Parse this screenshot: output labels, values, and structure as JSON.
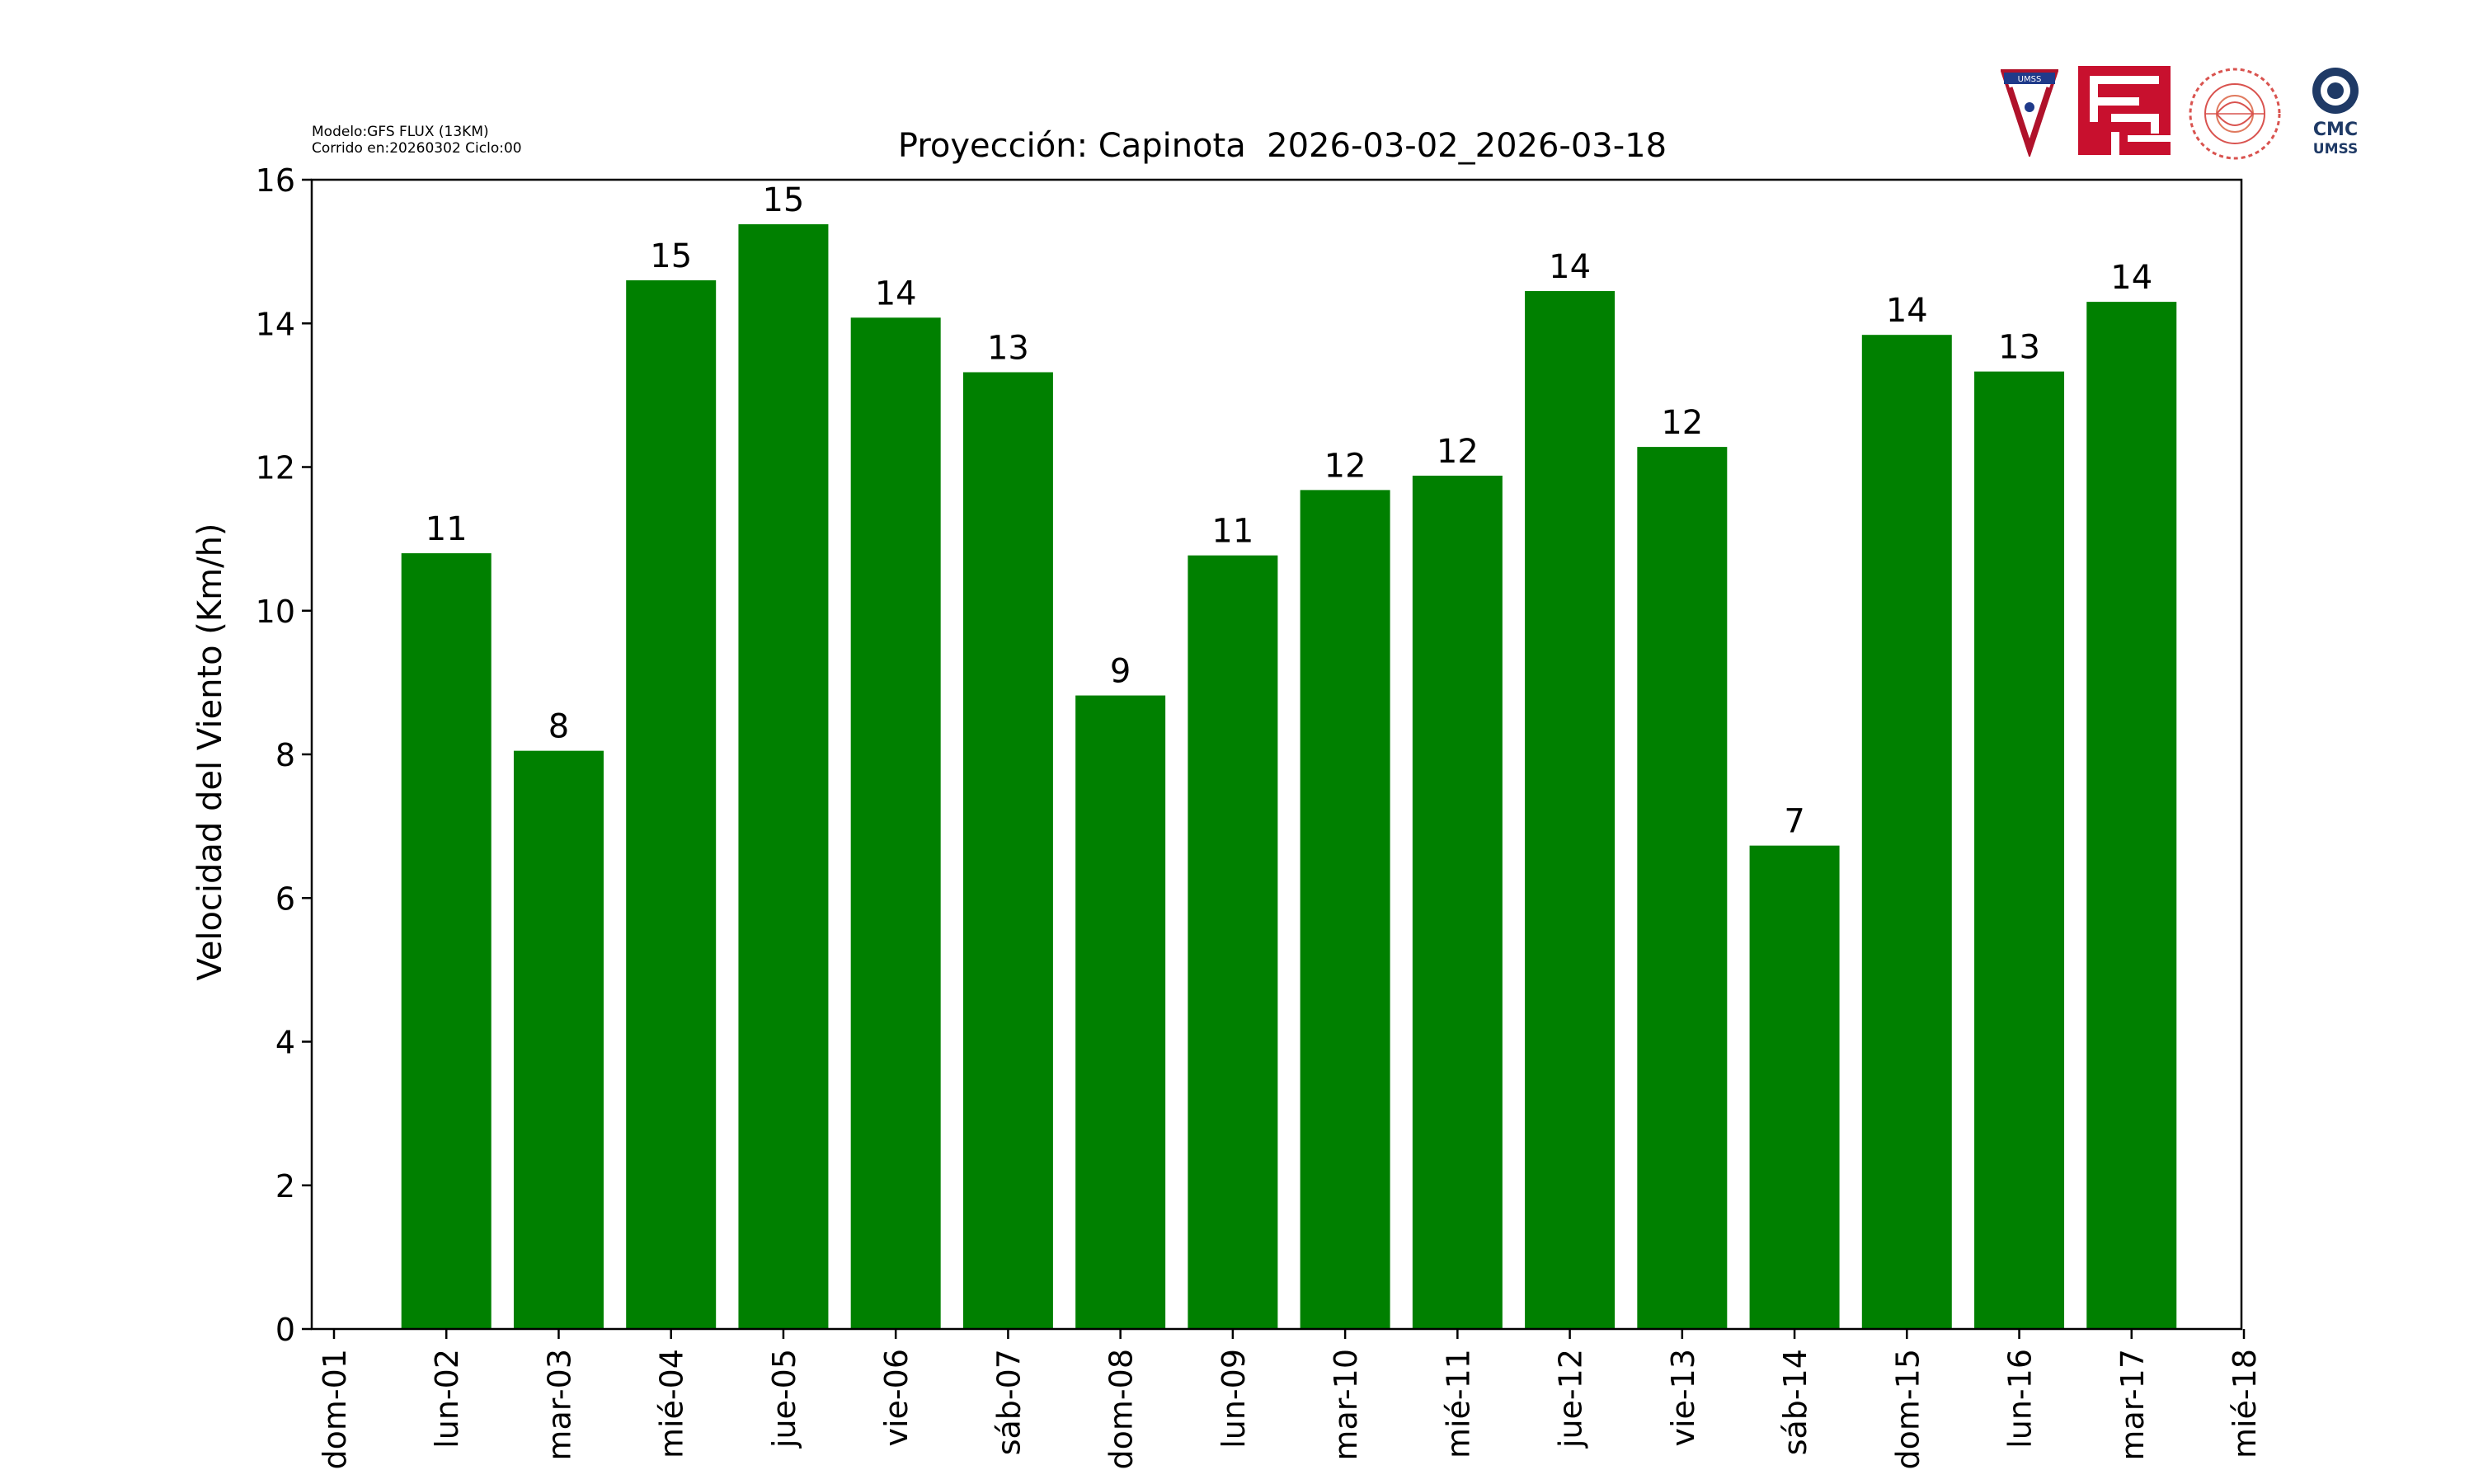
{
  "chart_data": {
    "type": "bar",
    "title": "Proyección: Capinota  2026-03-02_2026-03-18",
    "xlabel": "",
    "ylabel": "Velocidad del Viento (Km/h)",
    "ylim": [
      0,
      16
    ],
    "yticks": [
      "0",
      "2",
      "4",
      "6",
      "8",
      "10",
      "12",
      "14",
      "16"
    ],
    "xticks": [
      "dom-01",
      "lun-02",
      "mar-03",
      "mié-04",
      "jue-05",
      "vie-06",
      "sáb-07",
      "dom-08",
      "lun-09",
      "mar-10",
      "mié-11",
      "jue-12",
      "vie-13",
      "sáb-14",
      "dom-15",
      "lun-16",
      "mar-17",
      "mié-18"
    ],
    "categories": [
      "lun-02",
      "mar-03",
      "mié-04",
      "jue-05",
      "vie-06",
      "sáb-07",
      "dom-08",
      "lun-09",
      "mar-10",
      "mié-11",
      "jue-12",
      "vie-13",
      "sáb-14",
      "dom-15",
      "lun-16",
      "mar-17"
    ],
    "values": [
      10.8,
      8.05,
      14.6,
      15.38,
      14.08,
      13.32,
      8.82,
      10.77,
      11.68,
      11.88,
      14.45,
      12.28,
      6.73,
      13.84,
      13.33,
      14.3
    ],
    "data_labels": [
      "11",
      "8",
      "15",
      "15",
      "14",
      "13",
      "9",
      "11",
      "12",
      "12",
      "14",
      "12",
      "7",
      "14",
      "13",
      "14"
    ],
    "bar_color": "#008000",
    "grid": false,
    "legend": "none"
  },
  "model_info": {
    "line1": "Modelo:GFS FLUX (13KM)",
    "line2": "Corrido en:20260302 Ciclo:00"
  },
  "logos": {
    "umss_text": "UMSS",
    "cmc_text": "CMC",
    "cmc_sub": "UMSS"
  }
}
